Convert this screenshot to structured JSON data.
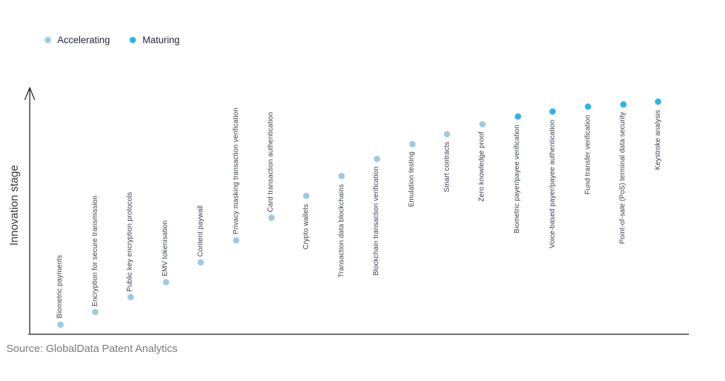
{
  "legend": {
    "items": [
      {
        "label": "Accelerating",
        "color": "#9dcae1"
      },
      {
        "label": "Maturing",
        "color": "#29b4ee"
      }
    ]
  },
  "source_note": "Source: GlobalData Patent Analytics",
  "chart_data": {
    "type": "scatter",
    "title": "",
    "xlabel": "",
    "ylabel": "Innovation stage",
    "ylim": [
      0,
      100
    ],
    "grid": false,
    "legend_position": "top-left",
    "x_axis_style": "no ticks, plain gray baseline",
    "y_axis_style": "no ticks, arrow pointing up",
    "series": [
      {
        "name": "Accelerating",
        "color": "#9dcae1"
      },
      {
        "name": "Maturing",
        "color": "#29b4ee"
      }
    ],
    "points": [
      {
        "label": "Biometric payments",
        "series": "Accelerating",
        "stage_score": 4,
        "label_position": "above"
      },
      {
        "label": "Encryption for secure transmission",
        "series": "Accelerating",
        "stage_score": 9,
        "label_position": "above"
      },
      {
        "label": "Public key encryption protocols",
        "series": "Accelerating",
        "stage_score": 15,
        "label_position": "above"
      },
      {
        "label": "EMV tokenisation",
        "series": "Accelerating",
        "stage_score": 21,
        "label_position": "above"
      },
      {
        "label": "Content paywall",
        "series": "Accelerating",
        "stage_score": 29,
        "label_position": "above"
      },
      {
        "label": "Privacy masking transaction verification",
        "series": "Accelerating",
        "stage_score": 38,
        "label_position": "above"
      },
      {
        "label": "Card transaction authentication",
        "series": "Accelerating",
        "stage_score": 47,
        "label_position": "above"
      },
      {
        "label": "Crypto wallets",
        "series": "Accelerating",
        "stage_score": 56,
        "label_position": "below"
      },
      {
        "label": "Transaction data blockchains",
        "series": "Accelerating",
        "stage_score": 64,
        "label_position": "below"
      },
      {
        "label": "Blockchain transaction verification",
        "series": "Accelerating",
        "stage_score": 71,
        "label_position": "below"
      },
      {
        "label": "Emulation testing",
        "series": "Accelerating",
        "stage_score": 77,
        "label_position": "below"
      },
      {
        "label": "Smart contracts",
        "series": "Accelerating",
        "stage_score": 81,
        "label_position": "below"
      },
      {
        "label": "Zero knowledge proof",
        "series": "Accelerating",
        "stage_score": 85,
        "label_position": "below"
      },
      {
        "label": "Biometric payer/payee verification",
        "series": "Maturing",
        "stage_score": 88,
        "label_position": "below"
      },
      {
        "label": "Voice-based payer/payee authentication",
        "series": "Maturing",
        "stage_score": 90,
        "label_position": "below"
      },
      {
        "label": "Fund transfer verification",
        "series": "Maturing",
        "stage_score": 92,
        "label_position": "below"
      },
      {
        "label": "Point-of-sale (PoS) terminal data security",
        "series": "Maturing",
        "stage_score": 93,
        "label_position": "below"
      },
      {
        "label": "Keystroke analysis",
        "series": "Maturing",
        "stage_score": 94,
        "label_position": "below"
      }
    ]
  }
}
